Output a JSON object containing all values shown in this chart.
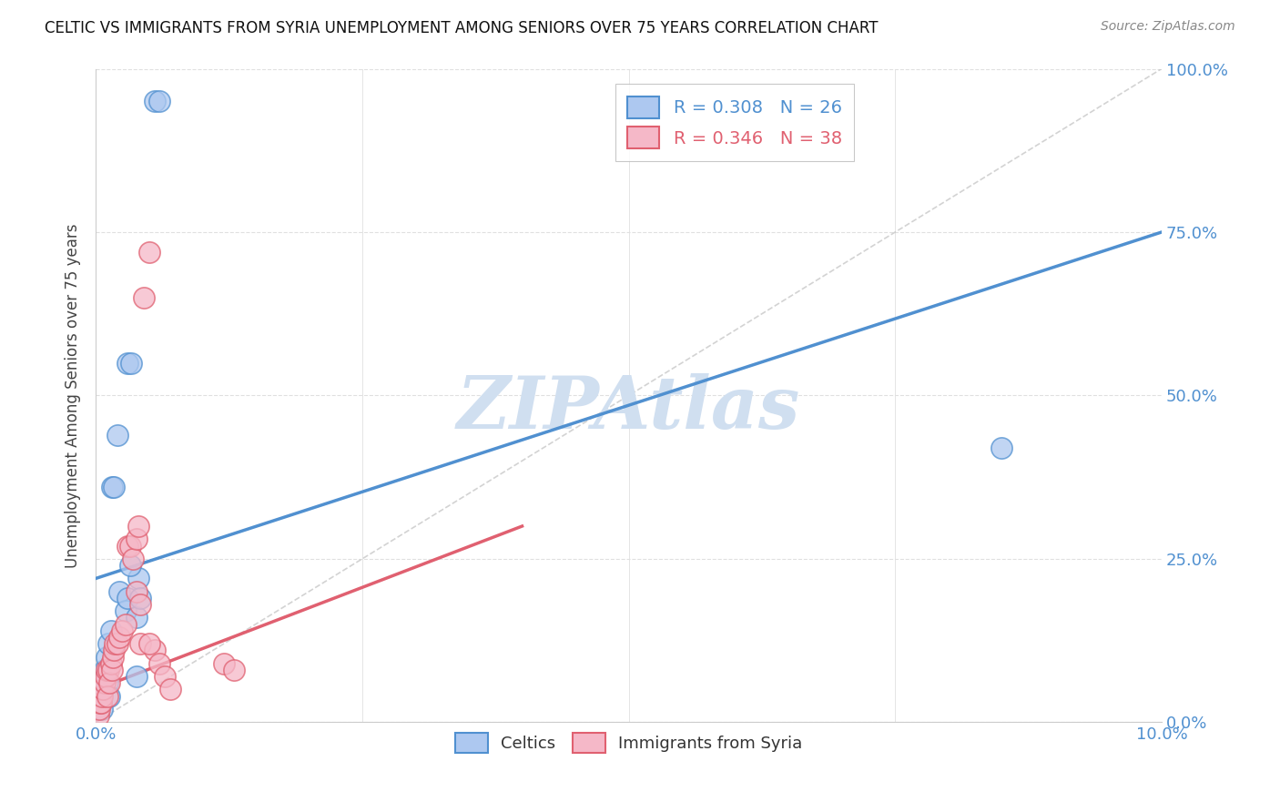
{
  "title": "CELTIC VS IMMIGRANTS FROM SYRIA UNEMPLOYMENT AMONG SENIORS OVER 75 YEARS CORRELATION CHART",
  "source": "Source: ZipAtlas.com",
  "ylabel": "Unemployment Among Seniors over 75 years",
  "xmin": 0.0,
  "xmax": 10.0,
  "ymin": 0.0,
  "ymax": 100.0,
  "yticks": [
    0.0,
    25.0,
    50.0,
    75.0,
    100.0
  ],
  "celtics_R": 0.308,
  "celtics_N": 26,
  "syria_R": 0.346,
  "syria_N": 38,
  "celtics_color": "#adc8f0",
  "syria_color": "#f5b8c8",
  "celtics_line_color": "#5090d0",
  "syria_line_color": "#e06070",
  "diagonal_color": "#c8c8c8",
  "watermark": "ZIPAtlas",
  "watermark_color": "#d0dff0",
  "celtics_x": [
    0.05,
    0.07,
    0.08,
    0.09,
    0.1,
    0.11,
    0.12,
    0.13,
    0.14,
    0.15,
    0.17,
    0.2,
    0.22,
    0.28,
    0.3,
    0.33,
    0.38,
    0.4,
    0.55,
    0.6,
    0.3,
    0.32,
    0.38,
    0.42,
    8.5,
    0.06
  ],
  "celtics_y": [
    3.0,
    5.0,
    8.0,
    7.0,
    10.0,
    6.0,
    12.0,
    4.0,
    14.0,
    36.0,
    36.0,
    44.0,
    20.0,
    17.0,
    55.0,
    55.0,
    7.0,
    22.0,
    95.0,
    95.0,
    19.0,
    24.0,
    16.0,
    19.0,
    42.0,
    2.0
  ],
  "syria_x": [
    0.02,
    0.03,
    0.04,
    0.05,
    0.06,
    0.07,
    0.08,
    0.09,
    0.1,
    0.11,
    0.12,
    0.13,
    0.14,
    0.15,
    0.16,
    0.17,
    0.18,
    0.2,
    0.22,
    0.25,
    0.28,
    0.3,
    0.32,
    0.35,
    0.38,
    0.4,
    0.42,
    0.45,
    0.5,
    0.55,
    0.6,
    0.65,
    0.7,
    0.38,
    0.42,
    0.5,
    1.2,
    1.3
  ],
  "syria_y": [
    1.0,
    2.0,
    3.0,
    3.0,
    4.0,
    5.0,
    6.0,
    7.0,
    8.0,
    4.0,
    8.0,
    6.0,
    9.0,
    8.0,
    10.0,
    11.0,
    12.0,
    12.0,
    13.0,
    14.0,
    15.0,
    27.0,
    27.0,
    25.0,
    28.0,
    30.0,
    12.0,
    65.0,
    72.0,
    11.0,
    9.0,
    7.0,
    5.0,
    20.0,
    18.0,
    12.0,
    9.0,
    8.0
  ],
  "celtics_line_x0": 0.0,
  "celtics_line_y0": 22.0,
  "celtics_line_x1": 10.0,
  "celtics_line_y1": 75.0,
  "syria_line_x0": 0.0,
  "syria_line_y0": 5.0,
  "syria_line_x1": 4.0,
  "syria_line_y1": 30.0,
  "background_color": "#ffffff",
  "grid_color": "#e0e0e0"
}
